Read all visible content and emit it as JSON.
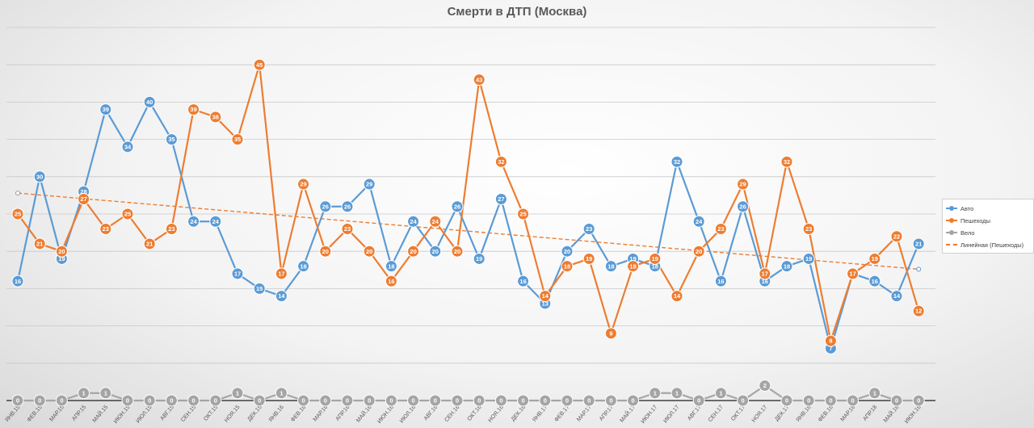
{
  "chart_data": {
    "type": "line",
    "title": "Смерти в ДТП (Москва)",
    "categories": [
      "ЯНВ.15",
      "ФЕВ.15",
      "МАР.15",
      "АПР.15",
      "МАЙ.15",
      "ИЮН.15",
      "ИЮЛ.15",
      "АВГ.15",
      "СЕН.15",
      "ОКТ.15",
      "НОЯ.15",
      "ДЕК.15",
      "ЯНВ.16",
      "ФЕВ.16",
      "МАР.16",
      "АПР.16",
      "МАЙ.16",
      "ИЮН.16",
      "ИЮЛ.16",
      "АВГ.16",
      "СЕН.16",
      "ОКТ.16",
      "НОЯ.16",
      "ДЕК.16",
      "ЯНВ.17",
      "ФЕВ.17",
      "МАР.17",
      "АПР.17",
      "МАЙ.17",
      "ИЮН.17",
      "ИЮЛ.17",
      "АВГ.17",
      "СЕН.17",
      "ОКТ.17",
      "НОЯ.17",
      "ДЕК.17",
      "ЯНВ.18",
      "ФЕВ.18",
      "МАР.18",
      "АПР.18",
      "МАЙ.18",
      "ИЮН.18"
    ],
    "series": [
      {
        "name": "Авто",
        "color": "#5b9bd5",
        "values": [
          16,
          30,
          19,
          28,
          39,
          34,
          40,
          35,
          24,
          24,
          17,
          15,
          14,
          18,
          26,
          26,
          29,
          18,
          24,
          20,
          26,
          19,
          27,
          16,
          13,
          20,
          23,
          18,
          19,
          18,
          32,
          24,
          16,
          26,
          16,
          18,
          19,
          7,
          17,
          16,
          14,
          21
        ]
      },
      {
        "name": "Пешеходы",
        "color": "#ed7d31",
        "values": [
          25,
          21,
          20,
          27,
          23,
          25,
          21,
          23,
          39,
          38,
          35,
          45,
          17,
          29,
          20,
          23,
          20,
          16,
          20,
          24,
          20,
          43,
          32,
          25,
          14,
          18,
          19,
          9,
          18,
          19,
          14,
          20,
          23,
          29,
          17,
          32,
          23,
          8,
          17,
          19,
          22,
          12
        ]
      },
      {
        "name": "Вело",
        "color": "#a5a5a5",
        "values": [
          0,
          0,
          0,
          1,
          1,
          0,
          0,
          0,
          0,
          0,
          1,
          0,
          1,
          0,
          0,
          0,
          0,
          0,
          0,
          0,
          0,
          0,
          0,
          0,
          0,
          0,
          0,
          0,
          0,
          1,
          1,
          0,
          1,
          0,
          2,
          0,
          0,
          0,
          0,
          1,
          0,
          0
        ]
      }
    ],
    "trendline": {
      "name": "Линейная (Пешеходы)",
      "color": "#ed7d31",
      "start": 27.8,
      "end": 17.6
    },
    "ylim": [
      0,
      50
    ],
    "grid": true,
    "legend": "right"
  }
}
